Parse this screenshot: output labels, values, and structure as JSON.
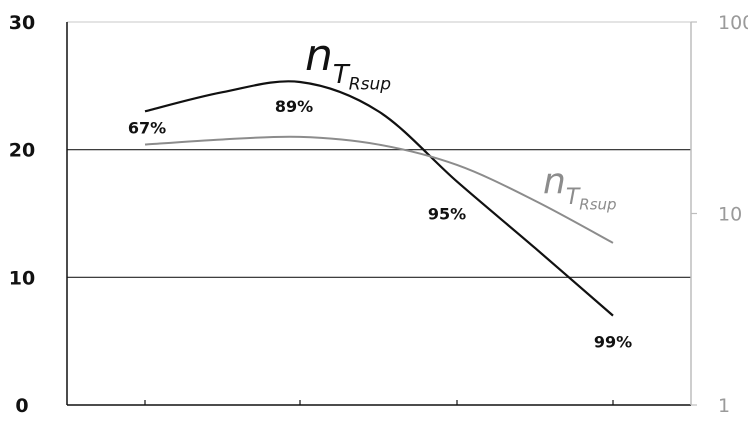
{
  "chart_data": {
    "type": "line",
    "title": "",
    "xlabel": "",
    "ylabel": "",
    "x": [
      1,
      2,
      3,
      4
    ],
    "xlim": [
      0.5,
      4.5
    ],
    "y_left": {
      "lim": [
        0,
        30
      ],
      "ticks": [
        "0",
        "10",
        "20",
        "30"
      ]
    },
    "y_right": {
      "scale": "log",
      "lim": [
        1,
        100
      ],
      "ticks": [
        "1",
        "10",
        "100"
      ]
    },
    "grid": "horizontal at 10 and 20",
    "series": [
      {
        "axis": "left",
        "color": "#111111",
        "name_base": "n",
        "name_sub": "T",
        "name_subsub": "Rsup",
        "points": [
          {
            "x": 1.0,
            "y": 23.0
          },
          {
            "x": 1.5,
            "y": 24.5
          },
          {
            "x": 2.0,
            "y": 25.3
          },
          {
            "x": 2.5,
            "y": 23.0
          },
          {
            "x": 3.0,
            "y": 17.5
          },
          {
            "x": 3.5,
            "y": 12.3
          },
          {
            "x": 4.0,
            "y": 7.0
          }
        ],
        "labels": [
          {
            "x": 1.0,
            "y": 23.0,
            "text": "67%"
          },
          {
            "x": 2.0,
            "y": 25.3,
            "text": "89%"
          },
          {
            "x": 3.0,
            "y": 17.5,
            "text": "95%"
          },
          {
            "x": 4.0,
            "y": 7.0,
            "text": "99%"
          }
        ]
      },
      {
        "axis": "left",
        "color": "#8c8c8c",
        "name_base": "n",
        "name_sub": "T",
        "name_subsub": "Rsup",
        "points": [
          {
            "x": 1.0,
            "y": 20.4
          },
          {
            "x": 1.5,
            "y": 20.8
          },
          {
            "x": 2.0,
            "y": 21.0
          },
          {
            "x": 2.5,
            "y": 20.4
          },
          {
            "x": 3.0,
            "y": 18.8
          },
          {
            "x": 3.5,
            "y": 16.0
          },
          {
            "x": 4.0,
            "y": 12.7
          }
        ]
      }
    ]
  }
}
